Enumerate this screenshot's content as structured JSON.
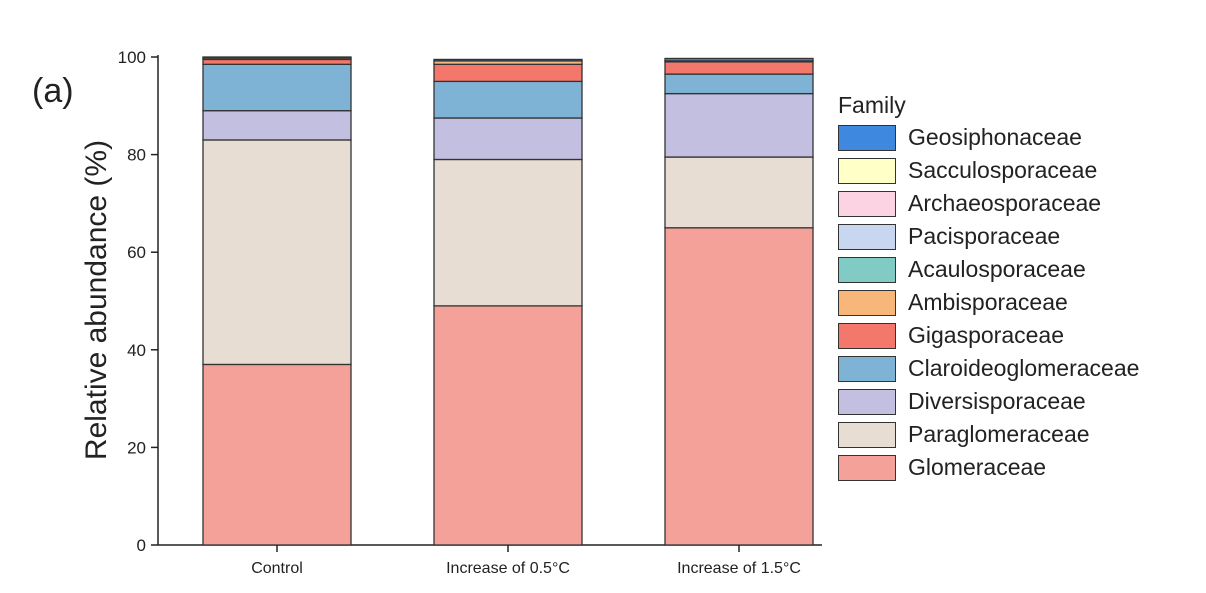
{
  "panel_label": "(a)",
  "chart_data": {
    "type": "bar",
    "stacked": true,
    "xlabel": "",
    "ylabel": "Relative abundance (%)",
    "ylim": [
      0,
      100
    ],
    "yticks": [
      "0",
      "20",
      "40",
      "60",
      "80",
      "100"
    ],
    "categories": [
      "Control",
      "Increase of 0.5°C",
      "Increase of 1.5°C"
    ],
    "legend_title": "Family",
    "legend_position": "right",
    "series": [
      {
        "name": "Glomeraceae",
        "color": "#f4a19a",
        "values": [
          37,
          49,
          65
        ]
      },
      {
        "name": "Paraglomeraceae",
        "color": "#e8ddd3",
        "values": [
          46,
          30,
          14.5
        ]
      },
      {
        "name": "Diversisporaceae",
        "color": "#c3bfe0",
        "values": [
          6,
          8.5,
          13
        ]
      },
      {
        "name": "Claroideoglomeraceae",
        "color": "#7fb3d5",
        "values": [
          9.5,
          7.5,
          4
        ]
      },
      {
        "name": "Gigasporaceae",
        "color": "#f4776b",
        "values": [
          1,
          3.5,
          2.5
        ]
      },
      {
        "name": "Ambisporaceae",
        "color": "#f8b77a",
        "values": [
          0.3,
          0.7,
          0.2
        ]
      },
      {
        "name": "Acaulosporaceae",
        "color": "#80cbc4",
        "values": [
          0,
          0,
          0
        ]
      },
      {
        "name": "Pacisporaceae",
        "color": "#c9d6f0",
        "values": [
          0,
          0,
          0
        ]
      },
      {
        "name": "Archaeosporaceae",
        "color": "#fcd3e2",
        "values": [
          0,
          0,
          0
        ]
      },
      {
        "name": "Sacculosporaceae",
        "color": "#ffffc8",
        "values": [
          0,
          0,
          0
        ]
      },
      {
        "name": "Geosiphonaceae",
        "color": "#3f88e0",
        "values": [
          0.2,
          0.3,
          0.5
        ]
      }
    ]
  }
}
